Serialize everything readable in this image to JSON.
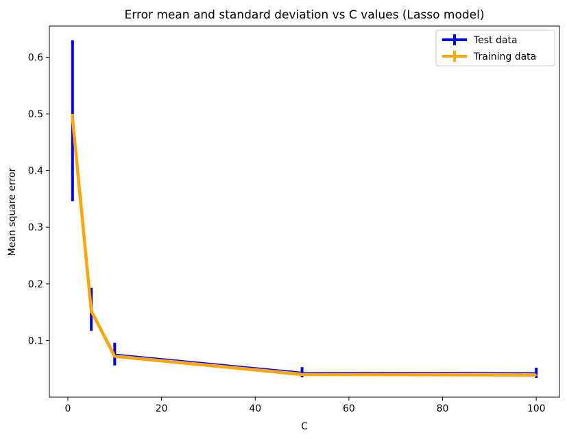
{
  "chart_data": {
    "type": "line",
    "title": "Error mean and standard deviation vs C values (Lasso model)",
    "xlabel": "C",
    "ylabel": "Mean square error",
    "xlim": [
      -3.95,
      104.95
    ],
    "ylim": [
      0.0,
      0.655
    ],
    "xticks": [
      0,
      20,
      40,
      60,
      80,
      100
    ],
    "yticks": [
      0.1,
      0.2,
      0.3,
      0.4,
      0.5,
      0.6
    ],
    "grid": false,
    "legend_position": "top-right",
    "x": [
      1,
      5,
      10,
      50,
      100
    ],
    "series": [
      {
        "name": "Test data",
        "color": "#0000ff",
        "values": [
          0.488,
          0.155,
          0.076,
          0.044,
          0.043
        ],
        "errors": [
          0.142,
          0.038,
          0.02,
          0.009,
          0.009
        ]
      },
      {
        "name": "Training data",
        "color": "#ffa500",
        "values": [
          0.492,
          0.152,
          0.072,
          0.04,
          0.039
        ],
        "errors": [
          0.008,
          0.003,
          0.002,
          0.001,
          0.001
        ]
      }
    ]
  }
}
